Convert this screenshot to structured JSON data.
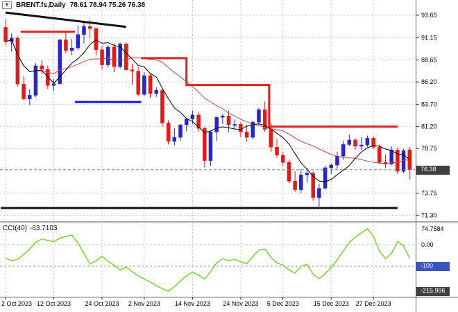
{
  "title": {
    "symbol_period": "BRENT.fs,Daily",
    "ohlc": "78.61 78.94 75.26 76.38",
    "dropdown_icon": "▼"
  },
  "indicator": {
    "label": "CCI(40)",
    "value": "-63.7103"
  },
  "price_axis": {
    "ticks": [
      "93.65",
      "91.15",
      "88.65",
      "86.20",
      "83.70",
      "81.20",
      "78.75",
      "73.75",
      "71.30"
    ],
    "current_price": "76.38"
  },
  "cci_axis": {
    "max_value": "74.7584",
    "zero_label": "0.00",
    "level_badge": "-100",
    "min_value": "-215.996"
  },
  "time_axis": {
    "labels": [
      {
        "label": "2 Oct 2023",
        "index": 0
      },
      {
        "label": "12 Oct 2023",
        "index": 8
      },
      {
        "label": "24 Oct 2023",
        "index": 16
      },
      {
        "label": "2 Nov 2023",
        "index": 23
      },
      {
        "label": "14 Nov 2023",
        "index": 31
      },
      {
        "label": "24 Nov 2023",
        "index": 39
      },
      {
        "label": "5 Dec 2023",
        "index": 46
      },
      {
        "label": "15 Dec 2023",
        "index": 54
      },
      {
        "label": "27 Dec 2023",
        "index": 61
      }
    ]
  },
  "chart_data": {
    "type": "candlestick",
    "symbol": "BRENT.fs",
    "timeframe": "Daily",
    "last_bar": {
      "open": 78.61,
      "high": 78.94,
      "low": 75.26,
      "close": 76.38
    },
    "current_price": 76.38,
    "y_range_main": [
      71.3,
      93.65
    ],
    "ma_fast_period": 7,
    "ma_slow_period": 18,
    "colors": {
      "bull": "#2626cc",
      "bear": "#e21a1a",
      "ma_fast": "#000000",
      "ma_slow": "#cc4444",
      "cci_line": "#6ad61f",
      "price_line": "#5b8aa6",
      "grid": "#c4c4c4",
      "badge_dark": "#404040",
      "badge_blue": "#3a55c0",
      "overlay_red": "#e02020",
      "overlay_blue": "#1515dd",
      "overlay_black": "#111111"
    },
    "candles": [
      [
        92.3,
        93.2,
        90.3,
        90.7
      ],
      [
        90.7,
        91.6,
        89.6,
        91.1
      ],
      [
        91.1,
        91.3,
        85.7,
        85.95
      ],
      [
        85.95,
        86.8,
        84.1,
        84.3
      ],
      [
        84.3,
        85.4,
        83.6,
        84.7
      ],
      [
        84.7,
        88.3,
        84.5,
        88.0
      ],
      [
        88.0,
        88.6,
        87.1,
        87.6
      ],
      [
        87.6,
        88.0,
        85.4,
        85.8
      ],
      [
        85.8,
        86.5,
        85.2,
        86.0
      ],
      [
        86.0,
        91.0,
        85.9,
        90.9
      ],
      [
        90.9,
        91.7,
        89.4,
        89.7
      ],
      [
        89.7,
        91.0,
        89.2,
        90.0
      ],
      [
        90.0,
        92.5,
        89.8,
        91.5
      ],
      [
        91.5,
        93.0,
        90.5,
        92.4
      ],
      [
        92.4,
        93.1,
        91.1,
        92.15
      ],
      [
        92.15,
        92.3,
        89.2,
        89.8
      ],
      [
        89.8,
        90.2,
        87.6,
        88.1
      ],
      [
        88.1,
        90.3,
        87.8,
        90.1
      ],
      [
        90.1,
        90.5,
        87.3,
        87.9
      ],
      [
        87.9,
        90.6,
        87.7,
        90.45
      ],
      [
        90.45,
        90.6,
        87.4,
        87.55
      ],
      [
        87.55,
        88.2,
        85.9,
        87.4
      ],
      [
        87.4,
        87.9,
        84.6,
        84.8
      ],
      [
        84.8,
        87.3,
        84.6,
        86.9
      ],
      [
        86.9,
        87.2,
        84.4,
        84.9
      ],
      [
        84.9,
        85.6,
        84.5,
        85.25
      ],
      [
        85.25,
        85.45,
        81.2,
        81.6
      ],
      [
        81.6,
        81.9,
        79.2,
        79.55
      ],
      [
        79.55,
        81.0,
        79.1,
        80.0
      ],
      [
        80.0,
        81.5,
        79.6,
        81.4
      ],
      [
        81.4,
        82.2,
        80.7,
        82.05
      ],
      [
        82.05,
        83.0,
        81.5,
        82.5
      ],
      [
        82.5,
        82.8,
        80.6,
        81.0
      ],
      [
        81.0,
        81.2,
        76.6,
        77.4
      ],
      [
        77.4,
        80.7,
        76.8,
        80.6
      ],
      [
        80.6,
        82.3,
        79.6,
        82.25
      ],
      [
        82.25,
        82.6,
        81.5,
        82.4
      ],
      [
        82.4,
        83.0,
        80.6,
        81.4
      ],
      [
        81.4,
        82.0,
        80.9,
        81.45
      ],
      [
        81.45,
        81.7,
        80.0,
        80.6
      ],
      [
        80.6,
        81.4,
        79.5,
        80.0
      ],
      [
        80.0,
        81.9,
        79.8,
        81.7
      ],
      [
        81.7,
        83.3,
        81.3,
        83.1
      ],
      [
        83.1,
        84.0,
        80.6,
        80.9
      ],
      [
        80.9,
        81.6,
        78.4,
        78.9
      ],
      [
        78.9,
        79.8,
        77.7,
        78.0
      ],
      [
        78.0,
        78.4,
        76.8,
        77.2
      ],
      [
        77.2,
        77.5,
        74.9,
        75.1
      ],
      [
        75.1,
        76.2,
        73.9,
        74.15
      ],
      [
        74.15,
        76.4,
        73.8,
        75.8
      ],
      [
        75.8,
        76.6,
        75.0,
        76.0
      ],
      [
        76.0,
        76.2,
        72.9,
        73.25
      ],
      [
        73.25,
        74.8,
        72.3,
        74.3
      ],
      [
        74.3,
        76.8,
        74.2,
        76.6
      ],
      [
        76.6,
        77.1,
        75.9,
        76.9
      ],
      [
        76.9,
        78.4,
        76.5,
        77.9
      ],
      [
        77.9,
        79.6,
        77.5,
        79.2
      ],
      [
        79.2,
        80.3,
        79.0,
        79.7
      ],
      [
        79.7,
        79.9,
        78.6,
        79.0
      ],
      [
        79.0,
        80.0,
        78.6,
        79.15
      ],
      [
        79.15,
        80.2,
        78.9,
        79.9
      ],
      [
        79.9,
        80.1,
        78.7,
        78.9
      ],
      [
        78.9,
        79.2,
        77.0,
        77.2
      ],
      [
        77.2,
        78.1,
        76.6,
        77.0
      ],
      [
        77.0,
        79.0,
        76.9,
        78.6
      ],
      [
        78.6,
        78.9,
        75.9,
        76.2
      ],
      [
        76.2,
        78.7,
        76.0,
        78.5
      ],
      [
        78.61,
        78.94,
        75.26,
        76.38
      ]
    ],
    "overlays": [
      {
        "name": "trendline-black-object",
        "color": "#111111",
        "width": 3,
        "points": [
          [
            0,
            93.95
          ],
          [
            20,
            92.35
          ]
        ]
      },
      {
        "name": "resistance-red-upper-object",
        "color": "#e02020",
        "width": 3,
        "points": [
          [
            2.5,
            91.8
          ],
          [
            11.5,
            91.8
          ]
        ]
      },
      {
        "name": "resistance-red-step-object",
        "color": "#e02020",
        "width": 3,
        "points": [
          [
            22.5,
            88.85
          ],
          [
            30,
            88.85
          ],
          [
            30,
            85.85
          ],
          [
            43.7,
            85.85
          ],
          [
            43.7,
            81.2
          ],
          [
            65,
            81.2
          ]
        ]
      },
      {
        "name": "support-blue-object",
        "color": "#1515dd",
        "width": 3,
        "points": [
          [
            11.5,
            83.95
          ],
          [
            22.5,
            83.95
          ]
        ]
      },
      {
        "name": "support-black-horizontal-object",
        "color": "#111111",
        "width": 3,
        "points": [
          [
            -0.8,
            72.1
          ],
          [
            65,
            72.1
          ]
        ]
      }
    ],
    "indicator": {
      "type": "line",
      "name": "CCI",
      "period": 40,
      "last": -63.7103,
      "levels": [
        0,
        -100
      ],
      "scale_max": 74.7584,
      "scale_min": -215.996,
      "values": [
        -62,
        -75,
        -68,
        -45,
        -20,
        12,
        27,
        20,
        15,
        30,
        38,
        45,
        8,
        -40,
        -90,
        -75,
        -54,
        -78,
        -95,
        -118,
        -104,
        -125,
        -145,
        -160,
        -174,
        -190,
        -205,
        -215.996,
        -195,
        -168,
        -145,
        -128,
        -142,
        -160,
        -125,
        -85,
        -65,
        -75,
        -68,
        -80,
        -88,
        -55,
        -25,
        -20,
        -58,
        -85,
        -95,
        -118,
        -132,
        -100,
        -92,
        -138,
        -158,
        -135,
        -105,
        -70,
        -30,
        10,
        35,
        55,
        74.7584,
        40,
        -30,
        -65,
        -40,
        15,
        -5,
        -63.7103
      ]
    }
  }
}
